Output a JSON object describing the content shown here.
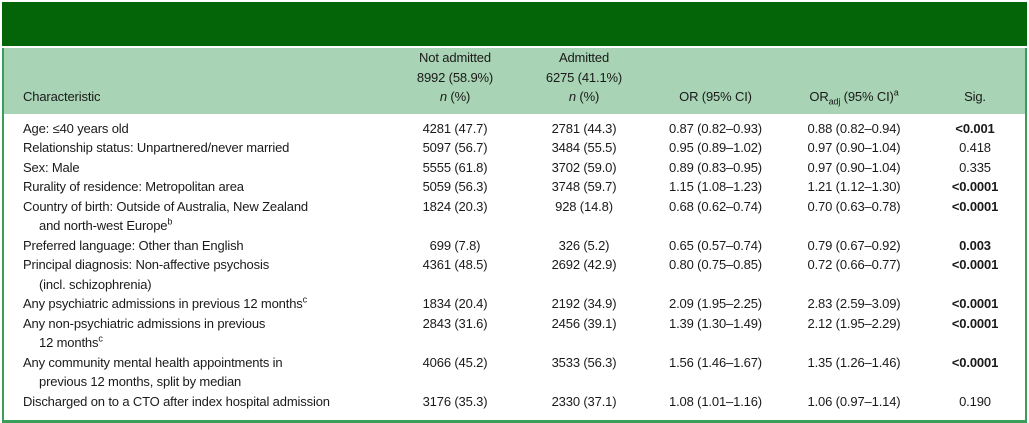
{
  "colors": {
    "dark_green": "#046408",
    "light_green": "#a8d3b4",
    "border_green": "#389e58"
  },
  "title_bar": {
    "text": ""
  },
  "table": {
    "header": {
      "characteristic": "Characteristic",
      "not_admitted": {
        "line1": "Not admitted",
        "line2": "8992 (58.9%)",
        "n": "n",
        "pct": " (%)"
      },
      "admitted": {
        "line1": "Admitted",
        "line2": "6275 (41.1%)",
        "n": "n",
        "pct": " (%)"
      },
      "or": "OR (95% CI)",
      "or_adj": {
        "prefix": "OR",
        "sub": "adj",
        "suffix": " (95% CI)",
        "sup": "a"
      },
      "sig": "Sig."
    },
    "rows": [
      {
        "line1": "Age: ≤40 years old",
        "sup1": "",
        "line2": "",
        "sup2": "",
        "not_admitted": "4281 (47.7)",
        "admitted": "2781 (44.3)",
        "or": "0.87 (0.82–0.93)",
        "or_adj": "0.88 (0.82–0.94)",
        "sig": "<0.001",
        "sig_bold": true
      },
      {
        "line1": "Relationship status: Unpartnered/never married",
        "sup1": "",
        "line2": "",
        "sup2": "",
        "not_admitted": "5097 (56.7)",
        "admitted": "3484 (55.5)",
        "or": "0.95 (0.89–1.02)",
        "or_adj": "0.97 (0.90–1.04)",
        "sig": "0.418",
        "sig_bold": false
      },
      {
        "line1": "Sex: Male",
        "sup1": "",
        "line2": "",
        "sup2": "",
        "not_admitted": "5555 (61.8)",
        "admitted": "3702 (59.0)",
        "or": "0.89 (0.83–0.95)",
        "or_adj": "0.97 (0.90–1.04)",
        "sig": "0.335",
        "sig_bold": false
      },
      {
        "line1": "Rurality of residence: Metropolitan area",
        "sup1": "",
        "line2": "",
        "sup2": "",
        "not_admitted": "5059 (56.3)",
        "admitted": "3748 (59.7)",
        "or": "1.15 (1.08–1.23)",
        "or_adj": "1.21 (1.12–1.30)",
        "sig": "<0.0001",
        "sig_bold": true
      },
      {
        "line1": "Country of birth: Outside of Australia, New Zealand",
        "sup1": "",
        "line2": "and north-west Europe",
        "sup2": "b",
        "not_admitted": "1824 (20.3)",
        "admitted": "928 (14.8)",
        "or": "0.68 (0.62–0.74)",
        "or_adj": "0.70 (0.63–0.78)",
        "sig": "<0.0001",
        "sig_bold": true
      },
      {
        "line1": "Preferred language: Other than English",
        "sup1": "",
        "line2": "",
        "sup2": "",
        "not_admitted": "699 (7.8)",
        "admitted": "326 (5.2)",
        "or": "0.65 (0.57–0.74)",
        "or_adj": "0.79 (0.67–0.92)",
        "sig": "0.003",
        "sig_bold": true
      },
      {
        "line1": "Principal diagnosis: Non-affective psychosis",
        "sup1": "",
        "line2": "(incl. schizophrenia)",
        "sup2": "",
        "not_admitted": "4361 (48.5)",
        "admitted": "2692 (42.9)",
        "or": "0.80 (0.75–0.85)",
        "or_adj": "0.72 (0.66–0.77)",
        "sig": "<0.0001",
        "sig_bold": true
      },
      {
        "line1": "Any psychiatric admissions in previous 12 months",
        "sup1": "c",
        "line2": "",
        "sup2": "",
        "not_admitted": "1834 (20.4)",
        "admitted": "2192 (34.9)",
        "or": "2.09 (1.95–2.25)",
        "or_adj": "2.83 (2.59–3.09)",
        "sig": "<0.0001",
        "sig_bold": true
      },
      {
        "line1": "Any non-psychiatric admissions in previous",
        "sup1": "",
        "line2": "12 months",
        "sup2": "c",
        "not_admitted": "2843 (31.6)",
        "admitted": "2456 (39.1)",
        "or": "1.39 (1.30–1.49)",
        "or_adj": "2.12 (1.95–2.29)",
        "sig": "<0.0001",
        "sig_bold": true
      },
      {
        "line1": "Any community mental health appointments in",
        "sup1": "",
        "line2": "previous 12 months, split by median",
        "sup2": "",
        "not_admitted": "4066 (45.2)",
        "admitted": "3533 (56.3)",
        "or": "1.56 (1.46–1.67)",
        "or_adj": "1.35 (1.26–1.46)",
        "sig": "<0.0001",
        "sig_bold": true
      },
      {
        "line1": "Discharged on to a CTO after index hospital admission",
        "sup1": "",
        "line2": "",
        "sup2": "",
        "not_admitted": "3176 (35.3)",
        "admitted": "2330 (37.1)",
        "or": "1.08 (1.01–1.16)",
        "or_adj": "1.06 (0.97–1.14)",
        "sig": "0.190",
        "sig_bold": false
      }
    ]
  }
}
